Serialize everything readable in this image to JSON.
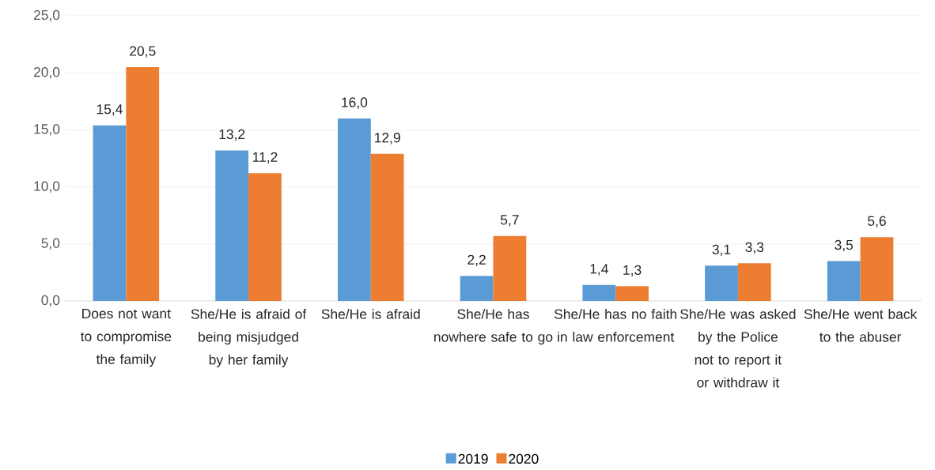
{
  "chart_data": {
    "type": "bar",
    "categories": [
      "Does not want to compromise the family",
      "She/He is afraid of being misjudged by her family",
      "She/He is afraid",
      "She/He has nowhere safe to go",
      "She/He has no faith in law enforcement",
      "She/He was asked by the Police not to report it or withdraw it",
      "She/He went back to the abuser"
    ],
    "series": [
      {
        "name": "2019",
        "color": "#5b9bd5",
        "values": [
          15.4,
          13.2,
          16.0,
          2.2,
          1.4,
          3.1,
          3.5
        ],
        "value_labels": [
          "15,4",
          "13,2",
          "16,0",
          "2,2",
          "1,4",
          "3,1",
          "3,5"
        ]
      },
      {
        "name": "2020",
        "color": "#ed7d31",
        "values": [
          20.5,
          11.2,
          12.9,
          5.7,
          1.3,
          3.3,
          5.6
        ],
        "value_labels": [
          "20,5",
          "11,2",
          "12,9",
          "5,7",
          "1,3",
          "3,3",
          "5,6"
        ]
      }
    ],
    "ylim": [
      0,
      25
    ],
    "yticks": [
      {
        "value": 0,
        "label": "0,0"
      },
      {
        "value": 5,
        "label": "5,0"
      },
      {
        "value": 10,
        "label": "10,0"
      },
      {
        "value": 15,
        "label": "15,0"
      },
      {
        "value": 20,
        "label": "20,0"
      },
      {
        "value": 25,
        "label": "25,0"
      }
    ],
    "grid": "y",
    "legend": "bottom"
  }
}
